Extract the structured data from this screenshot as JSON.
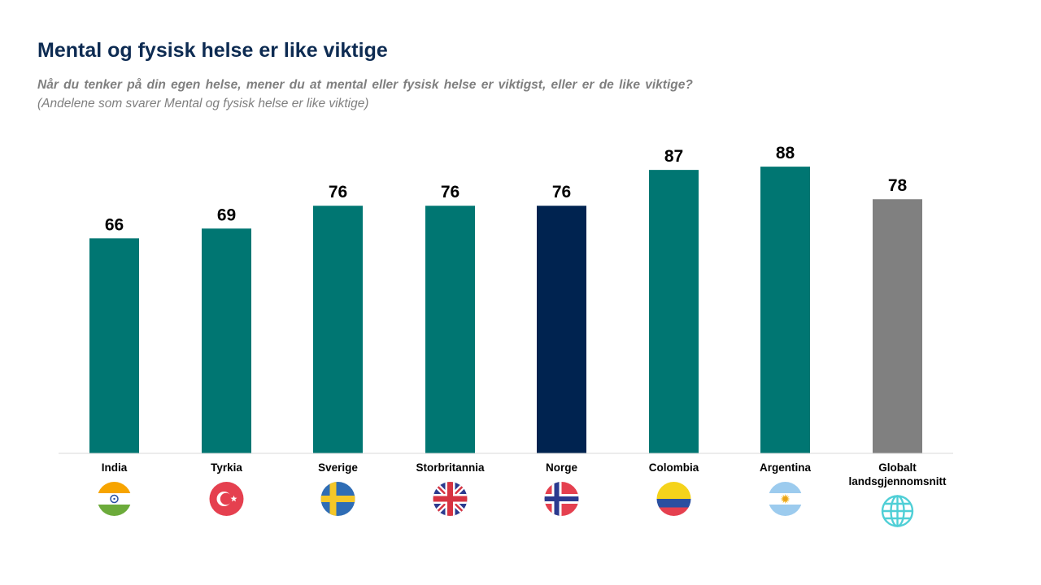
{
  "header": {
    "title": "Mental og fysisk helse er like viktige",
    "question": "Når du tenker på din egen helse, mener du at mental eller fysisk helse er viktigst, eller er de like viktige?",
    "note": "(Andelene som svarer Mental og fysisk helse er like viktige)"
  },
  "colors": {
    "default_bar": "#007672",
    "highlight_bar": "#002350",
    "average_bar": "#808080",
    "axis": "#d9d9d9"
  },
  "chart_data": {
    "type": "bar",
    "categories": [
      "India",
      "Tyrkia",
      "Sverige",
      "Storbritannia",
      "Norge",
      "Colombia",
      "Argentina",
      "Globalt landsgjennomsnitt"
    ],
    "category_lines": [
      [
        "India"
      ],
      [
        "Tyrkia"
      ],
      [
        "Sverige"
      ],
      [
        "Storbritannia"
      ],
      [
        "Norge"
      ],
      [
        "Colombia"
      ],
      [
        "Argentina"
      ],
      [
        "Globalt",
        "landsgjennomsnitt"
      ]
    ],
    "values": [
      66,
      69,
      76,
      76,
      76,
      87,
      88,
      78
    ],
    "bar_kinds": [
      "default",
      "default",
      "default",
      "default",
      "highlight",
      "default",
      "default",
      "average"
    ],
    "icons": [
      "india-flag-icon",
      "turkey-flag-icon",
      "sweden-flag-icon",
      "uk-flag-icon",
      "norway-flag-icon",
      "colombia-flag-icon",
      "argentina-flag-icon",
      "globe-icon"
    ],
    "title": "Mental og fysisk helse er like viktige",
    "xlabel": "",
    "ylabel": "",
    "ylim": [
      0,
      100
    ],
    "grid": false,
    "legend": "none",
    "data_labels": true
  }
}
